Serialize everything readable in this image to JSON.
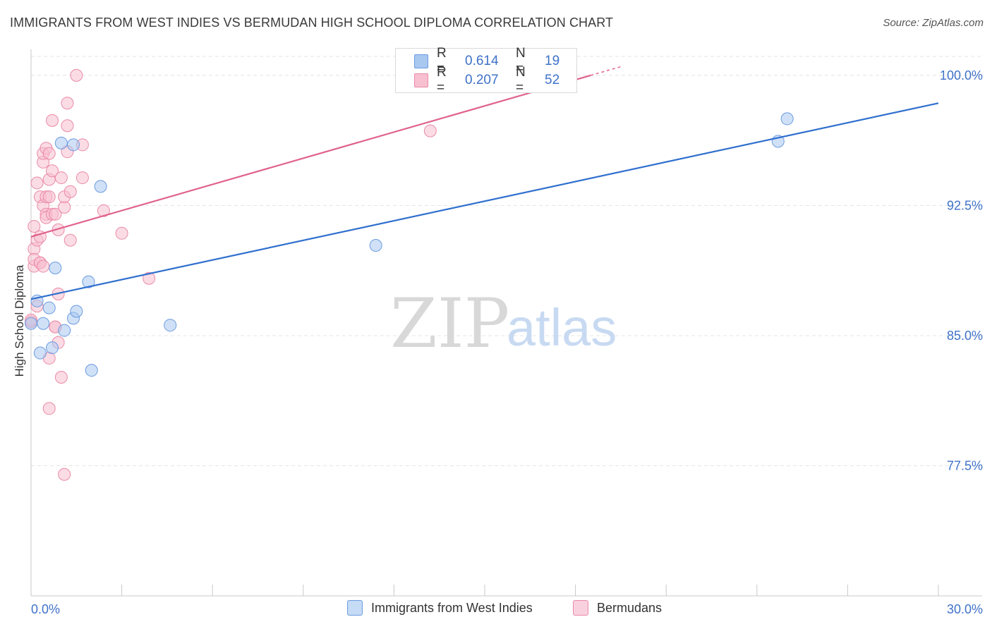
{
  "title": "IMMIGRANTS FROM WEST INDIES VS BERMUDAN HIGH SCHOOL DIPLOMA CORRELATION CHART",
  "source": "Source: ZipAtlas.com",
  "watermark": {
    "zip": "ZIP",
    "atlas": "atlas"
  },
  "colors": {
    "blue_fill": "#a9c8f0",
    "blue_stroke": "#6b9be0",
    "blue_line": "#2f6fce",
    "pink_fill": "#f7bfd0",
    "pink_stroke": "#ea8aa8",
    "pink_line": "#e0628d",
    "tick_label": "#3f72c8",
    "grid": "#e4e4e4"
  },
  "legend_top": [
    {
      "r_label": "R =",
      "r_value": "0.614",
      "n_label": "N =",
      "n_value": "19"
    },
    {
      "r_label": "R =",
      "r_value": "0.207",
      "n_label": "N =",
      "n_value": "52"
    }
  ],
  "legend_bottom": [
    "Immigrants from West Indies",
    "Bermudans"
  ],
  "chart_data": {
    "type": "scatter",
    "title": "IMMIGRANTS FROM WEST INDIES VS BERMUDAN HIGH SCHOOL DIPLOMA CORRELATION CHART",
    "xlabel": "",
    "ylabel": "High School Diploma",
    "xlim": [
      0,
      30
    ],
    "ylim": [
      70,
      101.5
    ],
    "x_tick_labels": [
      "0.0%",
      "30.0%"
    ],
    "y_ticks": [
      77.5,
      85.0,
      92.5,
      100.0
    ],
    "y_tick_labels": [
      "77.5%",
      "85.0%",
      "92.5%",
      "100.0%"
    ],
    "series": [
      {
        "name": "Immigrants from West Indies",
        "color": "blue",
        "R": 0.614,
        "N": 19,
        "trendline": [
          [
            0,
            87.1
          ],
          [
            30,
            98.4
          ]
        ],
        "points": [
          [
            0.0,
            85.7
          ],
          [
            0.2,
            87.0
          ],
          [
            0.3,
            84.0
          ],
          [
            0.4,
            85.7
          ],
          [
            0.6,
            86.6
          ],
          [
            0.7,
            84.3
          ],
          [
            0.8,
            88.9
          ],
          [
            1.0,
            96.1
          ],
          [
            1.1,
            85.3
          ],
          [
            1.4,
            86.0
          ],
          [
            1.4,
            96.0
          ],
          [
            1.5,
            86.4
          ],
          [
            1.9,
            88.1
          ],
          [
            2.0,
            83.0
          ],
          [
            2.3,
            93.6
          ],
          [
            4.6,
            85.6
          ],
          [
            11.4,
            90.2
          ],
          [
            24.7,
            96.2
          ],
          [
            25.0,
            97.5
          ]
        ]
      },
      {
        "name": "Bermudans",
        "color": "pink",
        "R": 0.207,
        "N": 52,
        "trendline": [
          [
            0,
            90.7
          ],
          [
            18.5,
            100.0
          ]
        ],
        "points": [
          [
            0.0,
            85.8
          ],
          [
            0.1,
            89.0
          ],
          [
            0.1,
            91.3
          ],
          [
            0.1,
            90.0
          ],
          [
            0.1,
            89.4
          ],
          [
            0.2,
            86.7
          ],
          [
            0.2,
            93.8
          ],
          [
            0.2,
            90.5
          ],
          [
            0.3,
            90.7
          ],
          [
            0.3,
            89.2
          ],
          [
            0.3,
            89.2
          ],
          [
            0.3,
            93.0
          ],
          [
            0.4,
            89.0
          ],
          [
            0.4,
            95.0
          ],
          [
            0.4,
            95.5
          ],
          [
            0.4,
            92.5
          ],
          [
            0.5,
            92.0
          ],
          [
            0.5,
            95.8
          ],
          [
            0.5,
            91.8
          ],
          [
            0.5,
            93.0
          ],
          [
            0.6,
            95.5
          ],
          [
            0.6,
            94.0
          ],
          [
            0.6,
            83.7
          ],
          [
            0.6,
            80.8
          ],
          [
            0.6,
            93.0
          ],
          [
            0.7,
            94.5
          ],
          [
            0.7,
            92.0
          ],
          [
            0.8,
            92.0
          ],
          [
            0.7,
            97.4
          ],
          [
            0.8,
            85.5
          ],
          [
            0.8,
            85.5
          ],
          [
            0.9,
            91.1
          ],
          [
            0.9,
            87.4
          ],
          [
            0.9,
            84.6
          ],
          [
            1.0,
            94.1
          ],
          [
            1.0,
            82.6
          ],
          [
            1.1,
            92.4
          ],
          [
            1.1,
            93.0
          ],
          [
            1.1,
            77.0
          ],
          [
            1.2,
            95.6
          ],
          [
            1.2,
            97.1
          ],
          [
            1.2,
            98.4
          ],
          [
            1.3,
            90.5
          ],
          [
            1.3,
            93.3
          ],
          [
            1.5,
            100.0
          ],
          [
            1.7,
            96.0
          ],
          [
            1.7,
            94.1
          ],
          [
            2.4,
            92.2
          ],
          [
            3.0,
            90.9
          ],
          [
            3.9,
            88.3
          ],
          [
            13.2,
            96.8
          ],
          [
            0.0,
            85.9
          ]
        ]
      }
    ]
  }
}
